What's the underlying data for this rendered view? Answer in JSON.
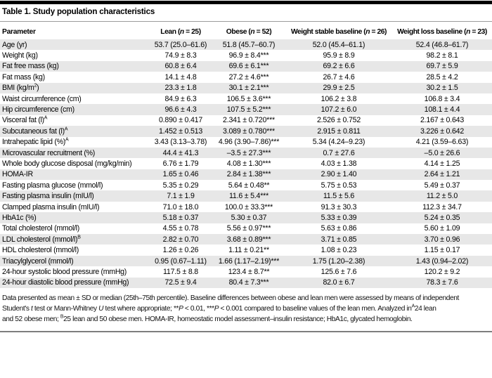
{
  "colors": {
    "stripe": "#e7e7e7",
    "top_bar": "#000000",
    "header_rule": "#9b9b9b",
    "bottom_rule": "#7e7e7e"
  },
  "table": {
    "title": "Table 1. Study population characteristics",
    "columns": [
      "Parameter",
      "Lean ({i}n{/i} = 25)",
      "Obese ({i}n{/i} = 52)",
      "Weight stable baseline ({i}n{/i} = 26)",
      "Weight loss baseline ({i}n{/i} = 23)"
    ],
    "rows": [
      [
        "Age (yr)",
        "53.7 (25.0–61.6)",
        "51.8 (45.7–60.7)",
        "52.0 (45.4–61.1)",
        "52.4 (46.8–61.7)"
      ],
      [
        "Weight (kg)",
        "74.9 ± 8.3",
        "96.9 ± 8.4***",
        "95.9 ± 8.9",
        "98.2 ± 8.1"
      ],
      [
        "Fat free mass (kg)",
        "60.8 ± 6.4",
        "69.6 ± 6.1***",
        "69.2 ± 6.6",
        "69.7 ± 5.9"
      ],
      [
        "Fat mass (kg)",
        "14.1 ± 4.8",
        "27.2 ± 4.6***",
        "26.7 ± 4.6",
        "28.5 ± 4.2"
      ],
      [
        "BMI (kg/m{sup}2{/sup})",
        "23.3 ± 1.8",
        "30.1 ± 2.1***",
        "29.9 ± 2.5",
        "30.2 ± 1.5"
      ],
      [
        "Waist circumference (cm)",
        "84.9 ± 6.3",
        "106.5 ± 3.6***",
        "106.2 ± 3.8",
        "106.8 ± 3.4"
      ],
      [
        "Hip circumference (cm)",
        "96.6 ± 4.3",
        "107.5 ± 5.2***",
        "107.2 ± 6.0",
        "108.1 ± 4.4"
      ],
      [
        "Visceral fat (l){sup}A{/sup}",
        "0.890 ± 0.417",
        "2.341 ± 0.720***",
        "2.526 ± 0.752",
        "2.167 ± 0.643"
      ],
      [
        "Subcutaneous fat (l){sup}A{/sup}",
        "1.452 ± 0.513",
        "3.089 ± 0.780***",
        "2.915 ± 0.811",
        "3.226 ± 0.642"
      ],
      [
        "Intrahepatic lipid (%){sup}A{/sup}",
        "3.43 (3.13–3.78)",
        "4.96 (3.90–7.86)***",
        "5.34 (4.24–9.23)",
        "4.21 (3.59–6.63)"
      ],
      [
        "Microvascular recruitment (%)",
        "44.4 ± 41.3",
        "–3.5 ± 27.3***",
        "0.7 ± 27.6",
        "–5.0 ± 26.6"
      ],
      [
        "Whole body glucose disposal (mg/kg/min)",
        "6.76 ± 1.79",
        "4.08 ± 1.30***",
        "4.03 ± 1.38",
        "4.14 ± 1.25"
      ],
      [
        "HOMA-IR",
        "1.65 ± 0.46",
        "2.84 ± 1.38***",
        "2.90 ± 1.40",
        "2.64 ± 1.21"
      ],
      [
        "Fasting plasma glucose (mmol/l)",
        "5.35 ± 0.29",
        "5.64 ± 0.48**",
        "5.75 ± 0.53",
        "5.49 ± 0.37"
      ],
      [
        "Fasting plasma insulin (mIU/l)",
        "7.1 ± 1.9",
        "11.6 ± 5.4***",
        "11.5 ± 5.6",
        "11.2 ± 5.0"
      ],
      [
        "Clamped plasma insulin (mIU/l)",
        "71.0 ± 18.0",
        "100.0 ± 33.3***",
        "91.3 ± 30.3",
        "112.3 ± 34.7"
      ],
      [
        "HbA1c (%)",
        "5.18 ± 0.37",
        "5.30 ± 0.37",
        "5.33 ± 0.39",
        "5.24 ± 0.35"
      ],
      [
        "Total cholesterol (mmol/l)",
        "4.55 ± 0.78",
        "5.56 ± 0.97***",
        "5.63 ± 0.86",
        "5.60 ± 1.09"
      ],
      [
        "LDL cholesterol (mmol/l){sup}B{/sup}",
        "2.82 ± 0.70",
        "3.68 ± 0.89***",
        "3.71 ± 0.85",
        "3.70 ± 0.96"
      ],
      [
        "HDL cholesterol (mmol/l)",
        "1.26 ± 0.26",
        "1.11 ± 0.21**",
        "1.08 ± 0.23",
        "1.15 ± 0.17"
      ],
      [
        "Triacylglycerol (mmol/l)",
        "0.95 (0.67–1.11)",
        "1.66 (1.17–2.19)***",
        "1.75 (1.20–2.38)",
        "1.43 (0.94–2.02)"
      ],
      [
        "24-hour systolic blood pressure (mmHg)",
        "117.5 ± 8.8",
        "123.4 ± 8.7**",
        "125.6 ± 7.6",
        "120.2 ± 9.2"
      ],
      [
        "24-hour diastolic blood pressure (mmHg)",
        "72.5 ± 9.4",
        "80.4 ± 7.3***",
        "82.0 ± 6.7",
        "78.3 ± 7.6"
      ]
    ],
    "footnote_lines": [
      "Data presented as mean ± SD or median (25th–75th percentile). Baseline differences between obese and lean men were assessed by means of independent",
      "Student's {i}t{/i} test or Mann-Whitney {i}U{/i} test where appropriate; **{i}P{/i} < 0.01, ***{i}P{/i} < 0.001 compared to baseline values of the lean men. Analyzed in{sup}A{/sup}24 lean",
      "and 52 obese men; {sup}B{/sup}25 lean and 50 obese men. HOMA-IR, homeostatic model assessment–insulin resistance; HbA1c, glycated hemoglobin."
    ]
  }
}
